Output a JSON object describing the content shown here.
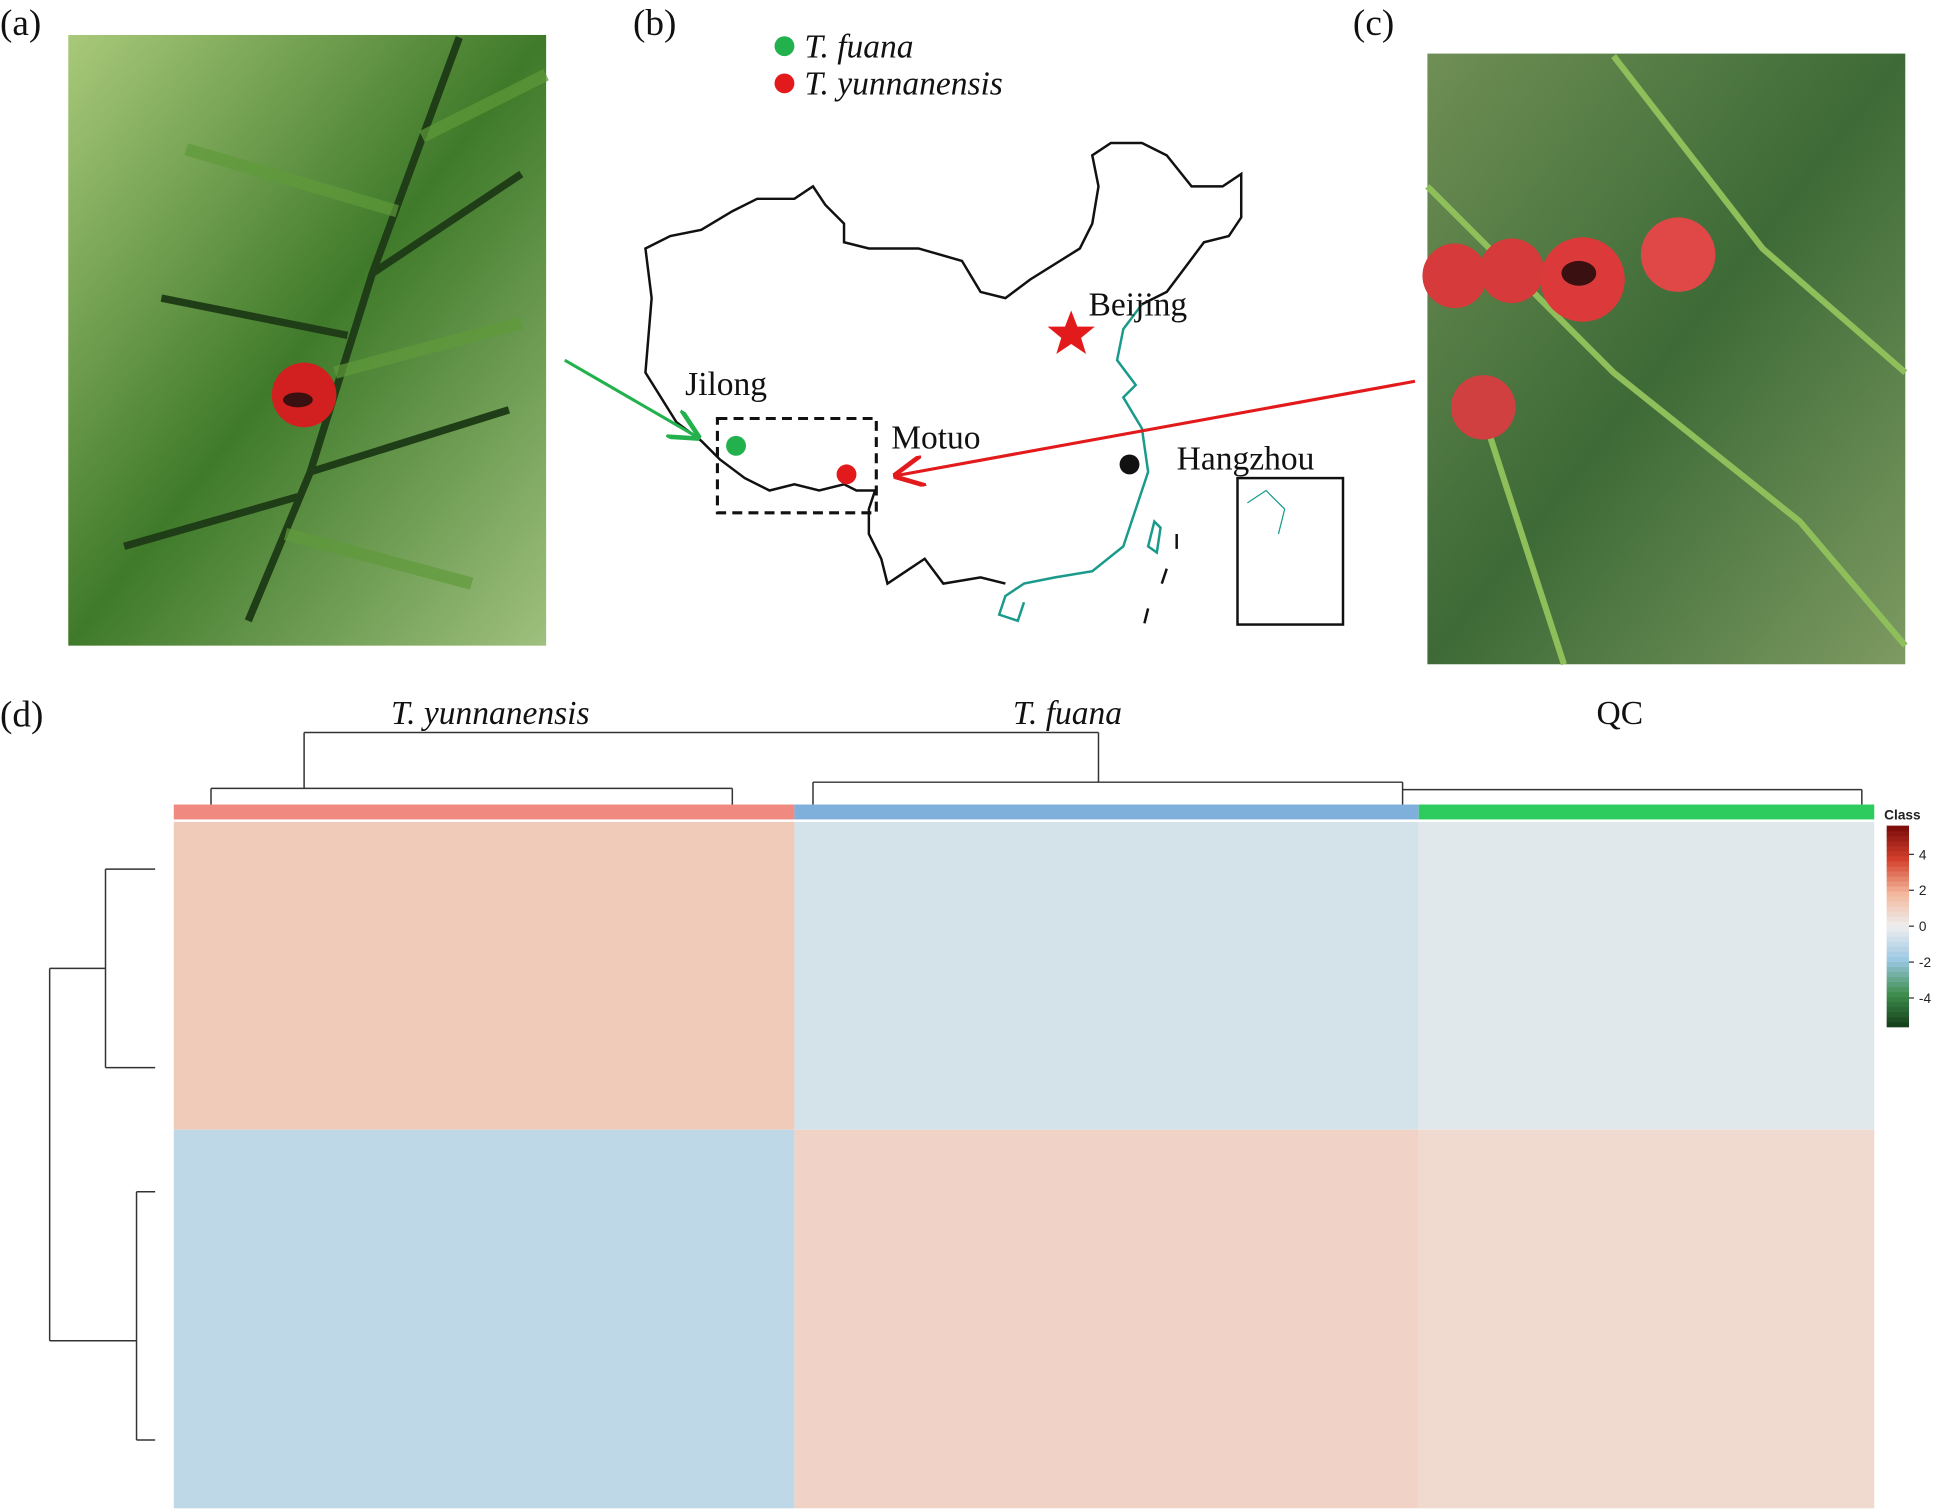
{
  "panel_labels": [
    "(a)",
    "(b)",
    "(c)",
    "(d)"
  ],
  "map": {
    "legend": [
      {
        "name": "T. fuana",
        "color": "#22b14c"
      },
      {
        "name": "T. yunnanensis",
        "color": "#e31a1c"
      }
    ],
    "places": [
      "Beijing",
      "Jilong",
      "Motuo",
      "Hangzhou"
    ]
  },
  "chart_data": {
    "type": "heatmap",
    "columns": [
      "T. yunnanensis",
      "T. fuana",
      "QC"
    ],
    "column_colors": [
      "#f08a80",
      "#7fb0dc",
      "#2ecc5f"
    ],
    "rows": [
      null,
      null
    ],
    "values": [
      [
        1.2,
        -0.6,
        -0.3
      ],
      [
        -1.1,
        0.9,
        0.7
      ]
    ],
    "colorbar": {
      "title": "Class",
      "lim": [
        -5.6,
        5.6
      ],
      "ticks": [
        4,
        2,
        0,
        -2,
        -4
      ],
      "colors": [
        "#143d18",
        "#3f8f4f",
        "#9cc8e2",
        "#eeeeee",
        "#f3b79c",
        "#d4402c",
        "#7a0b0b"
      ]
    }
  }
}
